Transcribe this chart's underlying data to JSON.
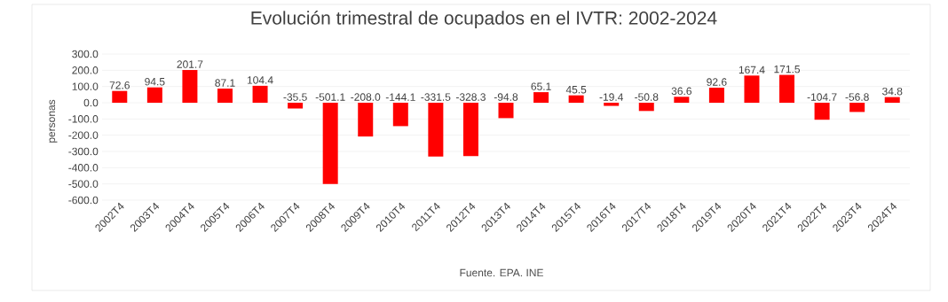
{
  "chart_data": {
    "type": "bar",
    "title": "Evolución trimestral de ocupados en el IVTR: 2002-2024",
    "ylabel": "personas",
    "categories": [
      "2002T4",
      "2003T4",
      "2004T4",
      "2005T4",
      "2006T4",
      "2007T4",
      "2008T4",
      "2009T4",
      "2010T4",
      "2011T4",
      "2012T4",
      "2013T4",
      "2014T4",
      "2015T4",
      "2016T4",
      "2017T4",
      "2018T4",
      "2019T4",
      "2020T4",
      "2021T4",
      "2022T4",
      "2023T4",
      "2024T4"
    ],
    "values": [
      72.6,
      94.5,
      201.7,
      87.1,
      104.4,
      -35.5,
      -501.1,
      -208.0,
      -144.1,
      -331.5,
      -328.3,
      -94.8,
      65.1,
      45.5,
      -19.4,
      -50.8,
      36.6,
      92.6,
      167.4,
      171.5,
      -104.7,
      -56.8,
      34.8
    ],
    "value_labels": [
      "72.6",
      "94.5",
      "201.7",
      "87.1",
      "104.4",
      "-35.5",
      "-501.1",
      "-208.0",
      "-144.1",
      "-331.5",
      "-328.3",
      "-94.8",
      "65.1",
      "45.5",
      "-19.4",
      "-50.8",
      "36.6",
      "92.6",
      "167.4",
      "171.5",
      "-104.7",
      "-56.8",
      "34.8"
    ],
    "color": "#ff0000",
    "ylim": [
      -600,
      300
    ],
    "yticks": [
      {
        "value": -600,
        "label": "-600.0"
      },
      {
        "value": -500,
        "label": "-500.0"
      },
      {
        "value": -400,
        "label": "-400.0"
      },
      {
        "value": -300,
        "label": "-300.0"
      },
      {
        "value": -200,
        "label": "-200.0"
      },
      {
        "value": -100,
        "label": "-100.0"
      },
      {
        "value": 0,
        "label": "0.0"
      },
      {
        "value": 100,
        "label": "100.0"
      },
      {
        "value": 200,
        "label": "200.0"
      },
      {
        "value": 300,
        "label": "300.0"
      }
    ],
    "grid": "y",
    "annotations": [
      "Fuente. EPA. INE"
    ]
  }
}
